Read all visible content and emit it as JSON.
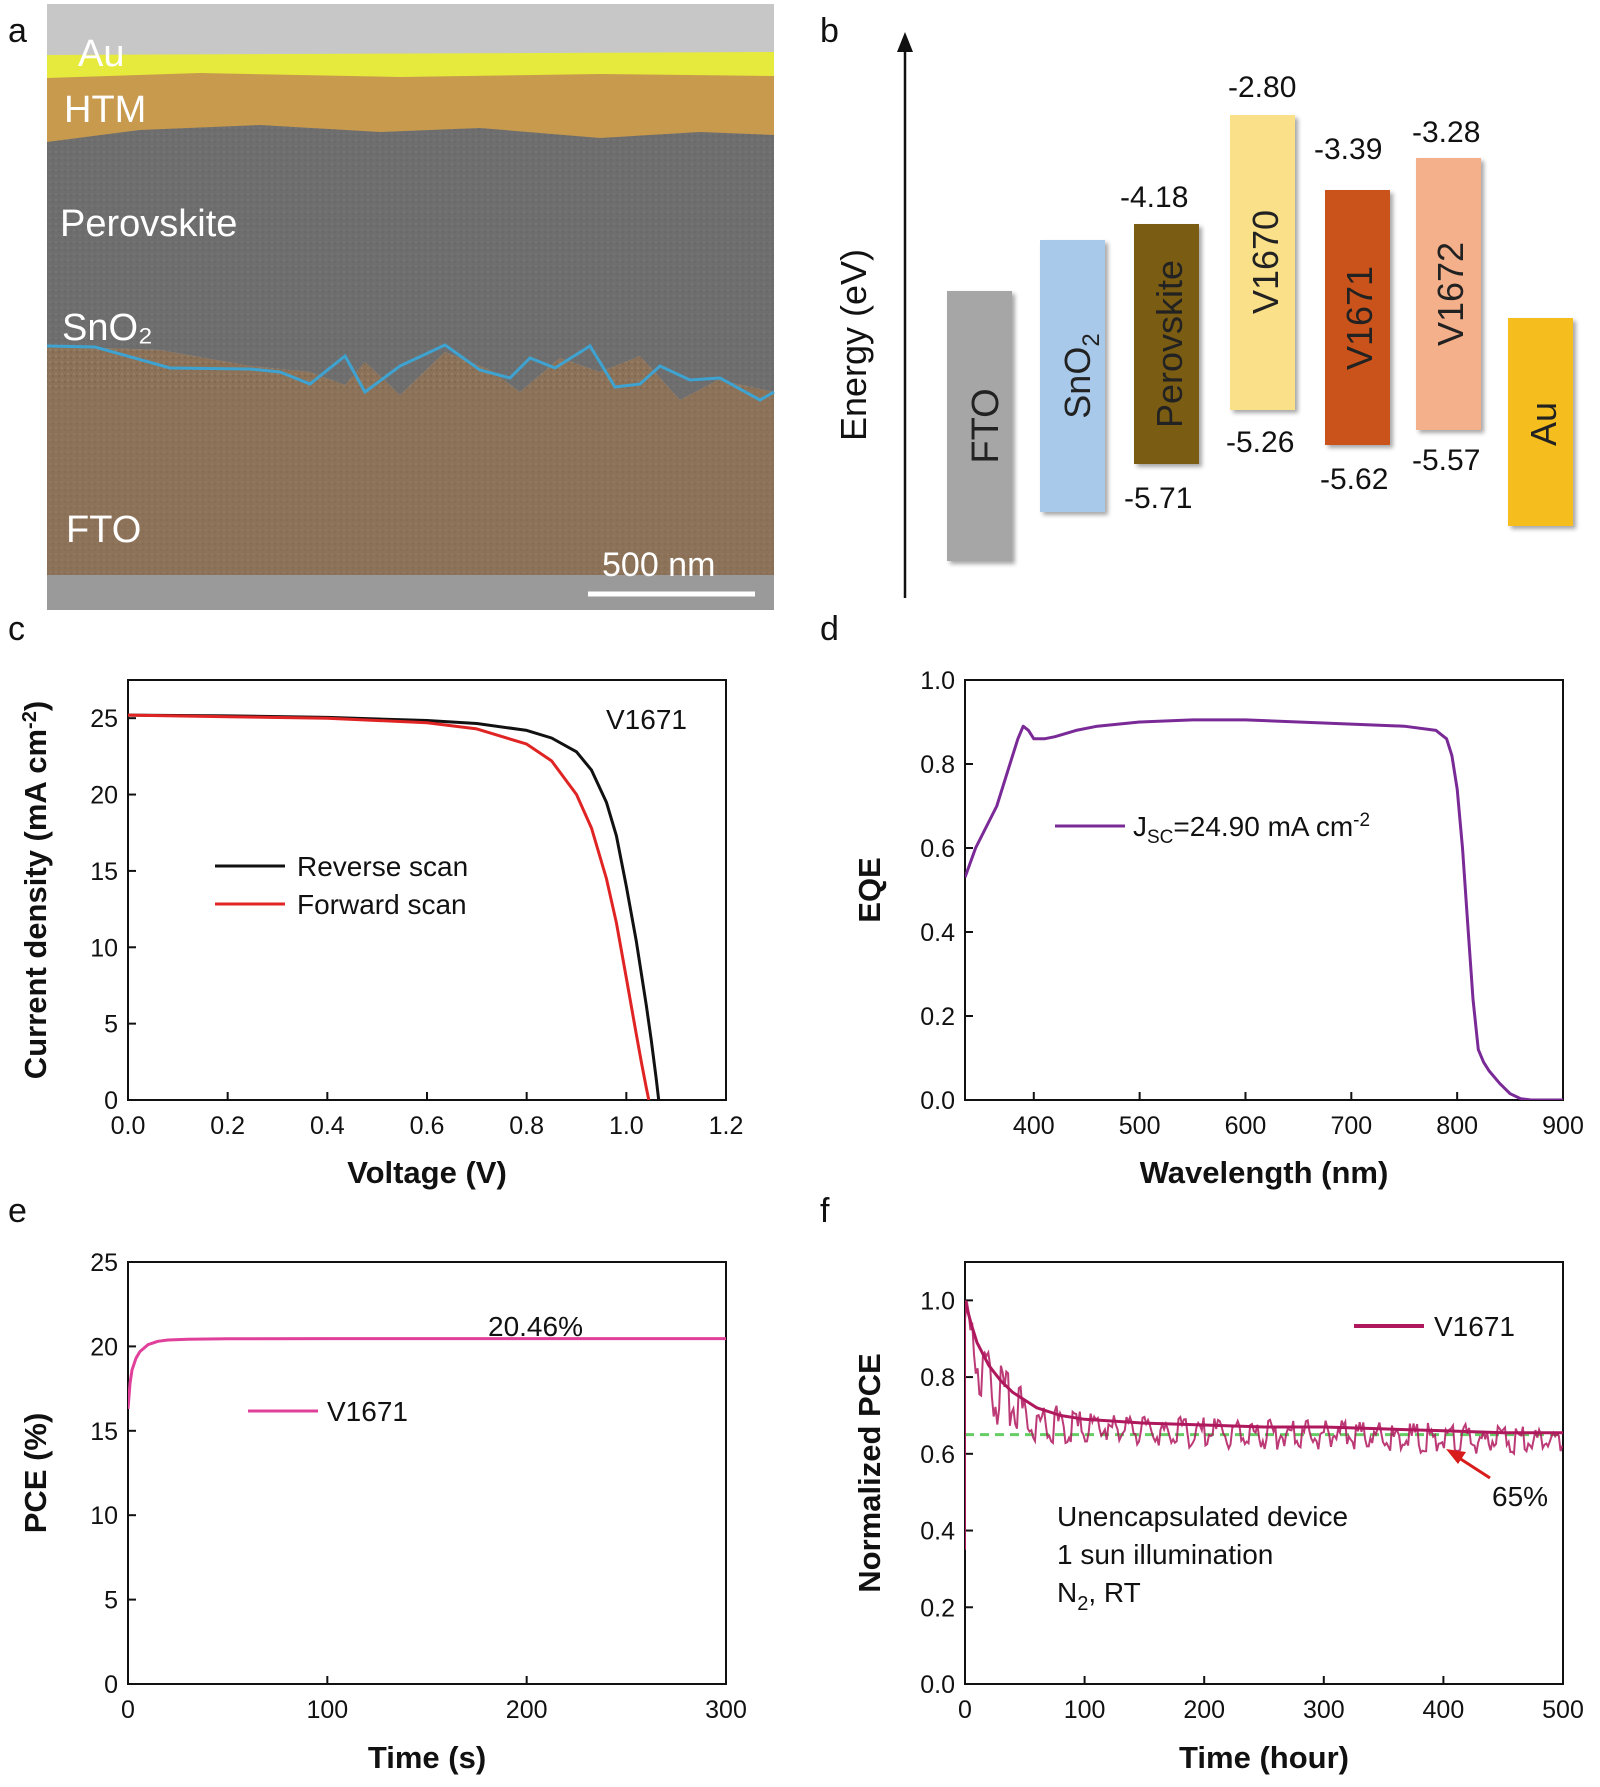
{
  "panels": {
    "a": "a",
    "b": "b",
    "c": "c",
    "d": "d",
    "e": "e",
    "f": "f"
  },
  "sem": {
    "labels": [
      "Au",
      "HTM",
      "Perovskite",
      "SnO₂",
      "FTO"
    ],
    "scale_bar": "500 nm",
    "colors": {
      "au": "#e6ea3c",
      "htm": "#c79a4e",
      "perovskite": "#6e6e6e",
      "fto": "#8c7258",
      "interface": "#3ea3d0"
    }
  },
  "energy": {
    "ylabel": "Energy (eV)",
    "layers": [
      {
        "name": "FTO",
        "color": "#a6a6a6"
      },
      {
        "name": "SnO2",
        "color": "#a9c9ea"
      },
      {
        "name": "Perovskite",
        "color": "#7a5c12",
        "top": "-4.18",
        "bottom": "-5.71"
      },
      {
        "name": "V1670",
        "color": "#fbe08a",
        "top": "-2.80",
        "bottom": "-5.26"
      },
      {
        "name": "V1671",
        "color": "#c9531a",
        "top": "-3.39",
        "bottom": "-5.62"
      },
      {
        "name": "V1672",
        "color": "#f4b08a",
        "top": "-3.28",
        "bottom": "-5.57"
      },
      {
        "name": "Au",
        "color": "#f5be1e"
      }
    ]
  },
  "chart_data": [
    {
      "panel": "c",
      "type": "line",
      "xlabel": "Voltage (V)",
      "ylabel": "Current density (mA cm-2)",
      "xlim": [
        0,
        1.2
      ],
      "ylim": [
        0,
        27.5
      ],
      "xticks": [
        "0.0",
        "0.2",
        "0.4",
        "0.6",
        "0.8",
        "1.0",
        "1.2"
      ],
      "yticks": [
        "0",
        "5",
        "10",
        "15",
        "20",
        "25"
      ],
      "annotation": "V1671",
      "legend": "center-left",
      "series": [
        {
          "name": "Reverse scan",
          "color": "#111111",
          "x": [
            0,
            0.2,
            0.4,
            0.6,
            0.7,
            0.8,
            0.85,
            0.9,
            0.93,
            0.96,
            0.98,
            1.0,
            1.02,
            1.04,
            1.05,
            1.06,
            1.065
          ],
          "y": [
            25.2,
            25.15,
            25.05,
            24.85,
            24.65,
            24.2,
            23.7,
            22.8,
            21.6,
            19.5,
            17.3,
            14.0,
            10.4,
            6.2,
            3.9,
            1.4,
            0
          ]
        },
        {
          "name": "Forward scan",
          "color": "#e02424",
          "x": [
            0,
            0.2,
            0.4,
            0.6,
            0.7,
            0.8,
            0.85,
            0.9,
            0.93,
            0.96,
            0.98,
            1.0,
            1.02,
            1.03,
            1.04,
            1.045
          ],
          "y": [
            25.2,
            25.1,
            25.0,
            24.7,
            24.3,
            23.3,
            22.2,
            20.0,
            17.8,
            14.5,
            11.6,
            8.0,
            4.3,
            2.5,
            0.8,
            0
          ]
        }
      ]
    },
    {
      "panel": "d",
      "type": "line",
      "xlabel": "Wavelength (nm)",
      "ylabel": "EQE",
      "xlim": [
        335,
        900
      ],
      "ylim": [
        0,
        1.0
      ],
      "xticks": [
        "400",
        "500",
        "600",
        "700",
        "800",
        "900"
      ],
      "yticks": [
        "0.0",
        "0.2",
        "0.4",
        "0.6",
        "0.8",
        "1.0"
      ],
      "legend": "center",
      "series": [
        {
          "name": "JSC=24.90 mA cm-2",
          "color": "#7a2a96",
          "x": [
            335,
            345,
            355,
            365,
            375,
            385,
            390,
            395,
            400,
            410,
            420,
            440,
            460,
            500,
            550,
            600,
            650,
            700,
            750,
            780,
            790,
            795,
            800,
            805,
            810,
            815,
            820,
            825,
            830,
            840,
            850,
            860,
            870,
            880,
            900
          ],
          "y": [
            0.53,
            0.6,
            0.65,
            0.7,
            0.78,
            0.86,
            0.89,
            0.88,
            0.86,
            0.86,
            0.865,
            0.88,
            0.89,
            0.9,
            0.905,
            0.905,
            0.9,
            0.895,
            0.89,
            0.88,
            0.86,
            0.82,
            0.74,
            0.6,
            0.42,
            0.24,
            0.12,
            0.09,
            0.07,
            0.04,
            0.015,
            0.003,
            0,
            0,
            0
          ]
        }
      ]
    },
    {
      "panel": "e",
      "type": "line",
      "xlabel": "Time (s)",
      "ylabel": "PCE (%)",
      "xlim": [
        0,
        300
      ],
      "ylim": [
        0,
        25
      ],
      "xticks": [
        "0",
        "100",
        "200",
        "300"
      ],
      "yticks": [
        "0",
        "5",
        "10",
        "15",
        "20",
        "25"
      ],
      "annotation": "20.46%",
      "legend": "center-left",
      "series": [
        {
          "name": "V1671",
          "color": "#e0409a",
          "x": [
            0,
            1,
            2,
            4,
            6,
            10,
            15,
            20,
            30,
            50,
            100,
            200,
            300
          ],
          "y": [
            16.3,
            17.8,
            18.6,
            19.3,
            19.7,
            20.1,
            20.3,
            20.38,
            20.42,
            20.45,
            20.46,
            20.46,
            20.46
          ]
        }
      ]
    },
    {
      "panel": "f",
      "type": "line",
      "xlabel": "Time (hour)",
      "ylabel": "Normalized PCE",
      "xlim": [
        0,
        500
      ],
      "ylim": [
        0,
        1.1
      ],
      "xticks": [
        "0",
        "100",
        "200",
        "300",
        "400",
        "500"
      ],
      "yticks": [
        "0.0",
        "0.2",
        "0.4",
        "0.6",
        "0.8",
        "1.0"
      ],
      "reference_line": {
        "y": 0.65,
        "label": "65%",
        "color": "#66cc66"
      },
      "annotations": [
        "Unencapsulated device",
        "1 sun illumination",
        "N2, RT"
      ],
      "legend": "top-right",
      "series": [
        {
          "name": "V1671",
          "color": "#b0185e",
          "x": [
            0,
            5,
            10,
            20,
            30,
            40,
            50,
            60,
            80,
            100,
            150,
            200,
            250,
            300,
            350,
            400,
            450,
            500
          ],
          "y": [
            1.0,
            0.94,
            0.89,
            0.83,
            0.79,
            0.76,
            0.74,
            0.72,
            0.7,
            0.69,
            0.68,
            0.675,
            0.67,
            0.67,
            0.665,
            0.66,
            0.655,
            0.655
          ]
        }
      ]
    }
  ]
}
